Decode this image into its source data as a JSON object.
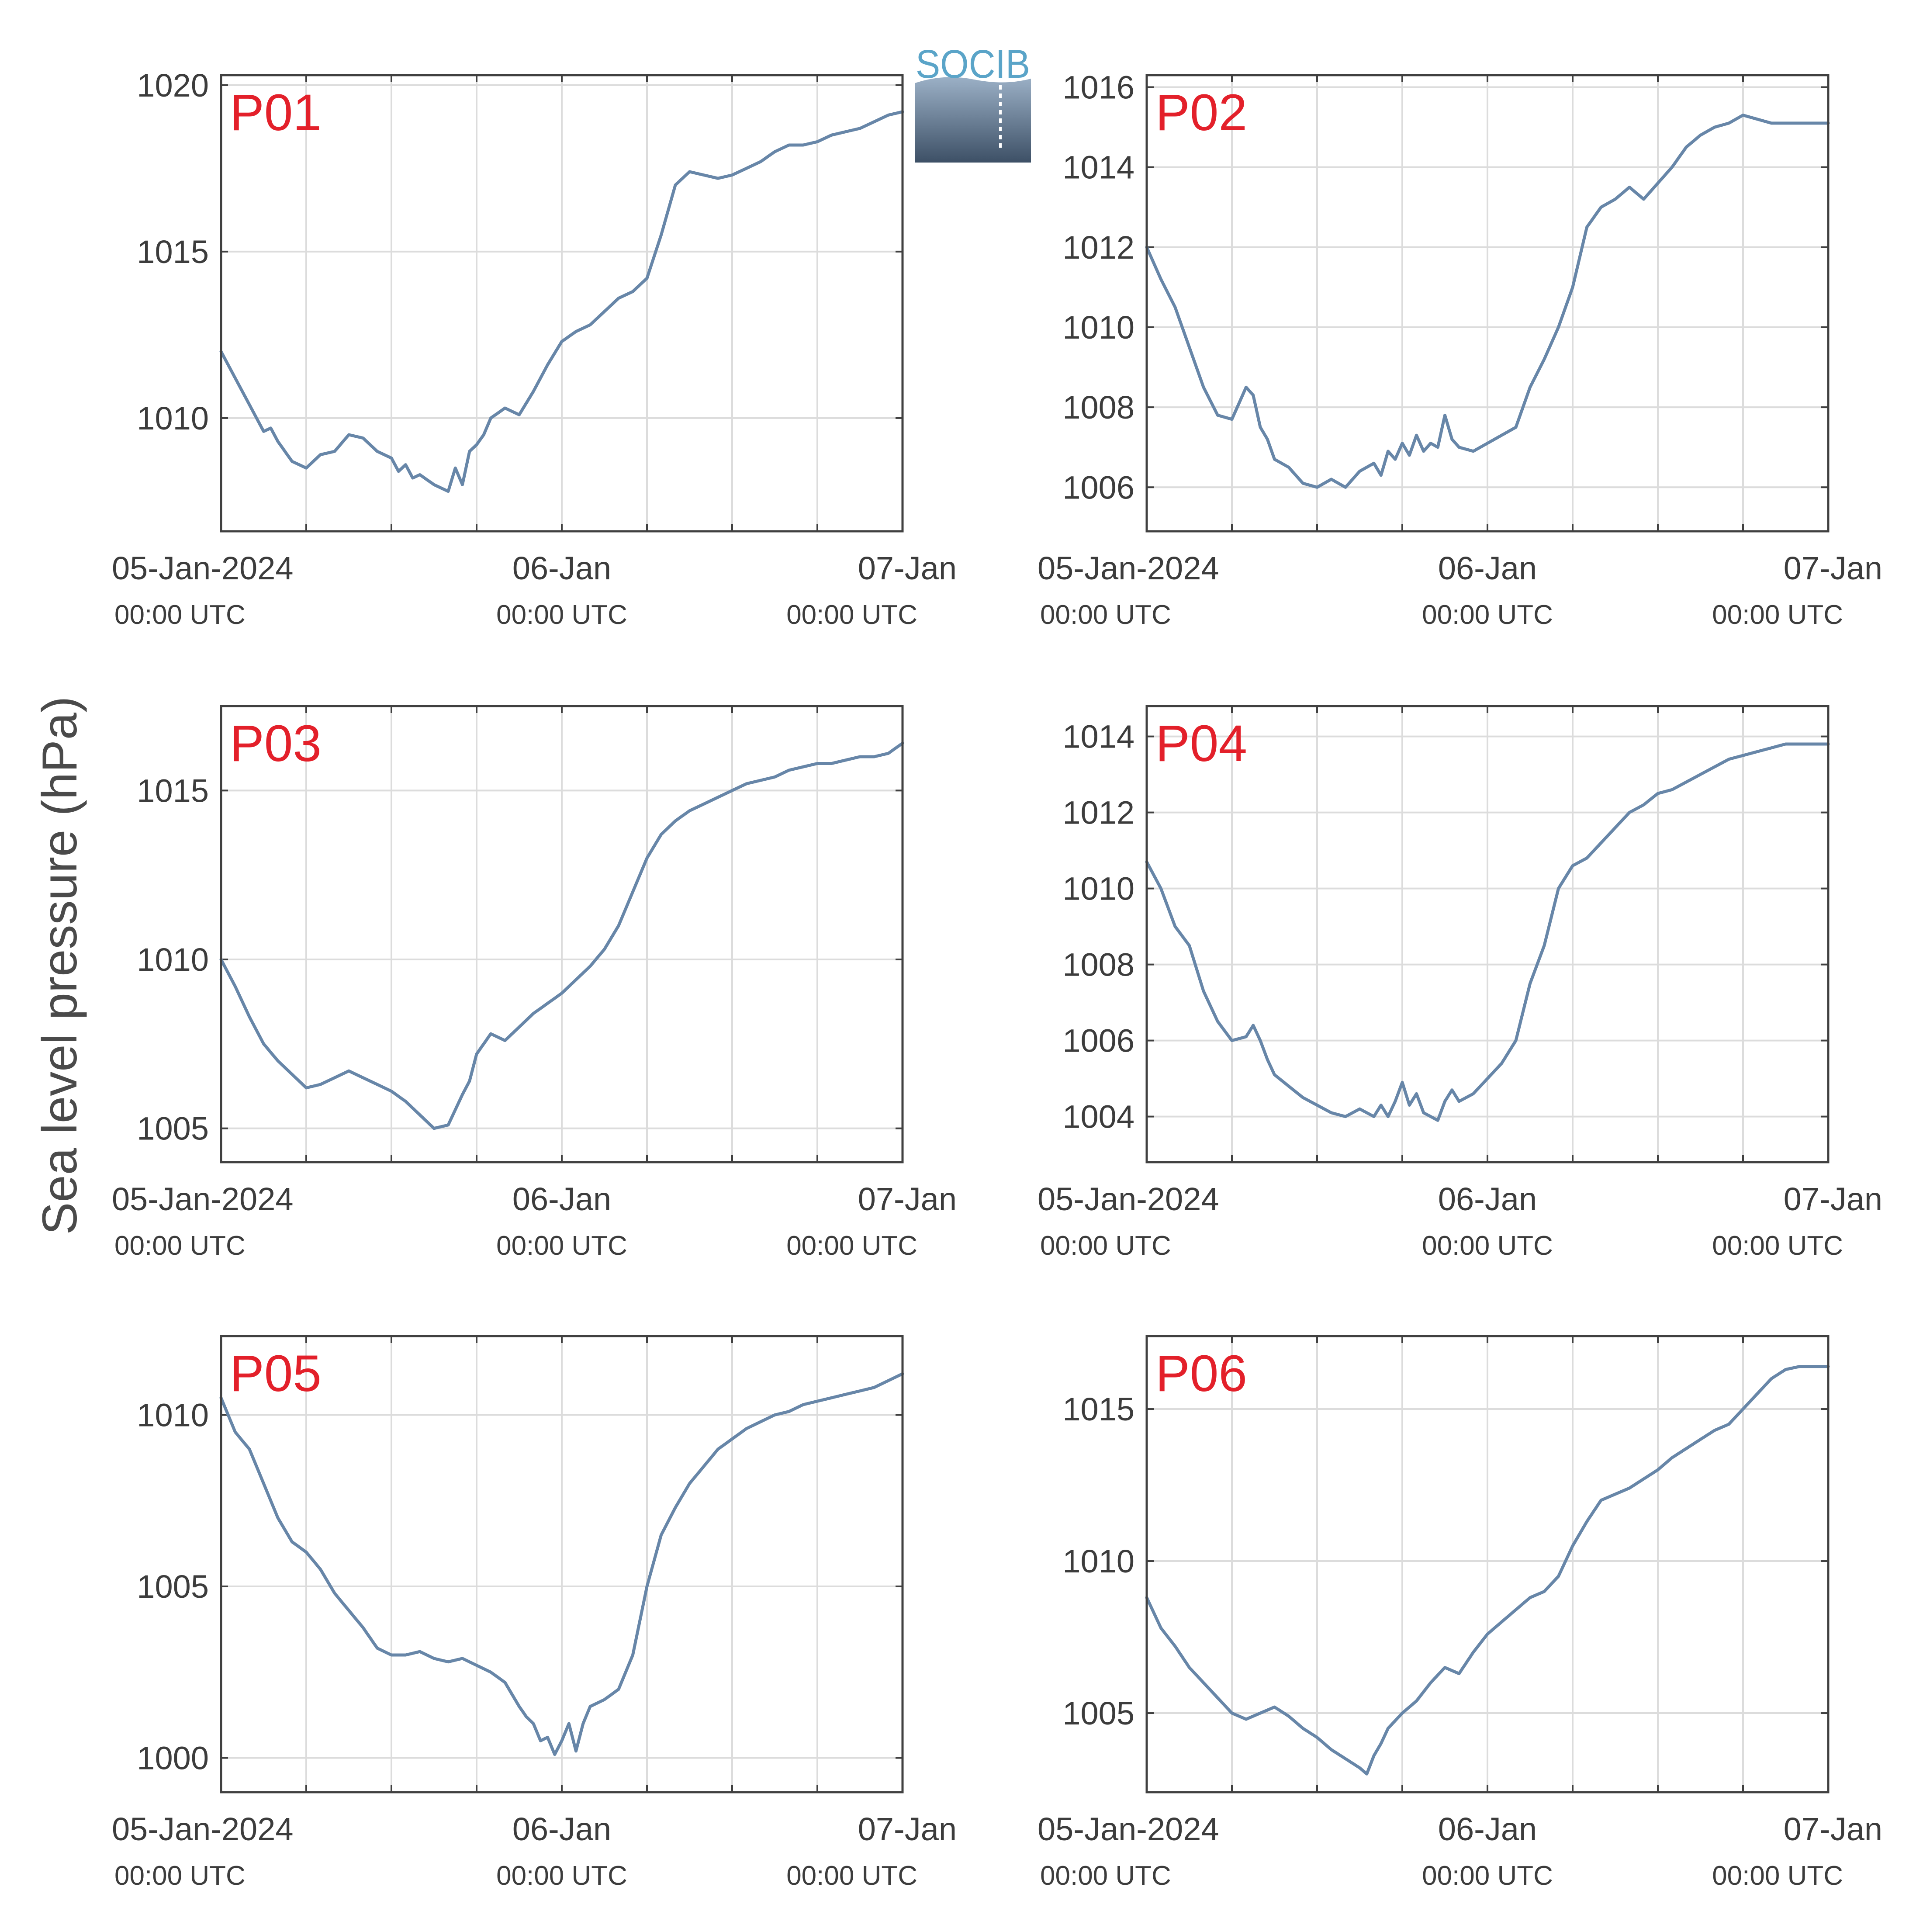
{
  "figure": {
    "ylabel": "Sea level pressure (hPa)",
    "logo_text": "SOCIB",
    "colors": {
      "line": "#6786a8",
      "panel_label": "#e3202a",
      "axis": "#404040",
      "grid": "#dcdcdc",
      "tick_text": "#3c3c3c",
      "logo_text": "#5aa4c8",
      "logo_top": "#9bb0c6",
      "logo_bottom": "#3d5066"
    }
  },
  "x_axis": {
    "range_hours": [
      0,
      48
    ],
    "ticks": [
      {
        "hours": 0,
        "label": "05-Jan-2024",
        "sublabel": "00:00 UTC"
      },
      {
        "hours": 24,
        "label": "06-Jan",
        "sublabel": "00:00 UTC"
      },
      {
        "hours": 48,
        "label": "07-Jan",
        "sublabel": "00:00 UTC"
      }
    ],
    "minor_grid_hours": [
      6,
      12,
      18,
      30,
      36,
      42
    ]
  },
  "chart_data": [
    {
      "type": "line",
      "label": "P01",
      "ylim": [
        1006.6,
        1020.3
      ],
      "yticks": [
        1010,
        1015,
        1020
      ],
      "series": [
        {
          "x": [
            0,
            1,
            2,
            3,
            3.5,
            4,
            5,
            6,
            7,
            8,
            9,
            10,
            11,
            12,
            12.5,
            13,
            13.5,
            14,
            15,
            16,
            16.5,
            17,
            17.5,
            18,
            18.5,
            19,
            20,
            21,
            22,
            23,
            24,
            25,
            26,
            27,
            28,
            29,
            30,
            31,
            32,
            33,
            34,
            35,
            36,
            37,
            38,
            39,
            40,
            41,
            42,
            43,
            44,
            45,
            46,
            47,
            48
          ],
          "y": [
            1012,
            1011.2,
            1010.4,
            1009.6,
            1009.7,
            1009.3,
            1008.7,
            1008.5,
            1008.9,
            1009.0,
            1009.5,
            1009.4,
            1009.0,
            1008.8,
            1008.4,
            1008.6,
            1008.2,
            1008.3,
            1008.0,
            1007.8,
            1008.5,
            1008.0,
            1009.0,
            1009.2,
            1009.5,
            1010.0,
            1010.3,
            1010.1,
            1010.8,
            1011.6,
            1012.3,
            1012.6,
            1012.8,
            1013.2,
            1013.6,
            1013.8,
            1014.2,
            1015.5,
            1017.0,
            1017.4,
            1017.3,
            1017.2,
            1017.3,
            1017.5,
            1017.7,
            1018.0,
            1018.2,
            1018.2,
            1018.3,
            1018.5,
            1018.6,
            1018.7,
            1018.9,
            1019.1,
            1019.2
          ]
        }
      ]
    },
    {
      "type": "line",
      "label": "P02",
      "ylim": [
        1004.9,
        1016.3
      ],
      "yticks": [
        1006,
        1008,
        1010,
        1012,
        1014,
        1016
      ],
      "series": [
        {
          "x": [
            0,
            1,
            2,
            3,
            4,
            5,
            6,
            6.5,
            7,
            7.5,
            8,
            8.5,
            9,
            10,
            11,
            12,
            13,
            14,
            15,
            16,
            16.5,
            17,
            17.5,
            18,
            18.5,
            19,
            19.5,
            20,
            20.5,
            21,
            21.5,
            22,
            23,
            24,
            25,
            26,
            27,
            28,
            29,
            30,
            31,
            32,
            33,
            34,
            35,
            36,
            37,
            38,
            39,
            40,
            41,
            42,
            43,
            44,
            45,
            46,
            47,
            48
          ],
          "y": [
            1012,
            1011.2,
            1010.5,
            1009.5,
            1008.5,
            1007.8,
            1007.7,
            1008.1,
            1008.5,
            1008.3,
            1007.5,
            1007.2,
            1006.7,
            1006.5,
            1006.1,
            1006.0,
            1006.2,
            1006.0,
            1006.4,
            1006.6,
            1006.3,
            1006.9,
            1006.7,
            1007.1,
            1006.8,
            1007.3,
            1006.9,
            1007.1,
            1007.0,
            1007.8,
            1007.2,
            1007.0,
            1006.9,
            1007.1,
            1007.3,
            1007.5,
            1008.5,
            1009.2,
            1010.0,
            1011.0,
            1012.5,
            1013.0,
            1013.2,
            1013.5,
            1013.2,
            1013.6,
            1014.0,
            1014.5,
            1014.8,
            1015.0,
            1015.1,
            1015.3,
            1015.2,
            1015.1,
            1015.1,
            1015.1,
            1015.1,
            1015.1
          ]
        }
      ]
    },
    {
      "type": "line",
      "label": "P03",
      "ylim": [
        1004.0,
        1017.5
      ],
      "yticks": [
        1005,
        1010,
        1015
      ],
      "series": [
        {
          "x": [
            0,
            1,
            2,
            3,
            4,
            5,
            6,
            7,
            8,
            9,
            10,
            11,
            12,
            13,
            14,
            15,
            16,
            17,
            17.5,
            18,
            19,
            20,
            21,
            22,
            23,
            24,
            25,
            26,
            27,
            28,
            29,
            30,
            31,
            32,
            33,
            34,
            35,
            36,
            37,
            38,
            39,
            40,
            41,
            42,
            43,
            44,
            45,
            46,
            47,
            48
          ],
          "y": [
            1010,
            1009.2,
            1008.3,
            1007.5,
            1007.0,
            1006.6,
            1006.2,
            1006.3,
            1006.5,
            1006.7,
            1006.5,
            1006.3,
            1006.1,
            1005.8,
            1005.4,
            1005.0,
            1005.1,
            1006.0,
            1006.4,
            1007.2,
            1007.8,
            1007.6,
            1008.0,
            1008.4,
            1008.7,
            1009.0,
            1009.4,
            1009.8,
            1010.3,
            1011.0,
            1012.0,
            1013.0,
            1013.7,
            1014.1,
            1014.4,
            1014.6,
            1014.8,
            1015.0,
            1015.2,
            1015.3,
            1015.4,
            1015.6,
            1015.7,
            1015.8,
            1015.8,
            1015.9,
            1016.0,
            1016.0,
            1016.1,
            1016.4
          ]
        }
      ]
    },
    {
      "type": "line",
      "label": "P04",
      "ylim": [
        1002.8,
        1014.8
      ],
      "yticks": [
        1004,
        1006,
        1008,
        1010,
        1012,
        1014
      ],
      "series": [
        {
          "x": [
            0,
            1,
            2,
            3,
            4,
            5,
            6,
            7,
            7.5,
            8,
            8.5,
            9,
            10,
            11,
            12,
            13,
            14,
            15,
            16,
            16.5,
            17,
            17.5,
            18,
            18.5,
            19,
            19.5,
            20,
            20.5,
            21,
            21.5,
            22,
            23,
            24,
            25,
            26,
            27,
            28,
            29,
            30,
            31,
            32,
            33,
            34,
            35,
            36,
            37,
            38,
            39,
            40,
            41,
            42,
            43,
            44,
            45,
            46,
            47,
            48
          ],
          "y": [
            1010.7,
            1010.0,
            1009.0,
            1008.5,
            1007.3,
            1006.5,
            1006.0,
            1006.1,
            1006.4,
            1006.0,
            1005.5,
            1005.1,
            1004.8,
            1004.5,
            1004.3,
            1004.1,
            1004.0,
            1004.2,
            1004.0,
            1004.3,
            1004.0,
            1004.4,
            1004.9,
            1004.3,
            1004.6,
            1004.1,
            1004.0,
            1003.9,
            1004.4,
            1004.7,
            1004.4,
            1004.6,
            1005.0,
            1005.4,
            1006.0,
            1007.5,
            1008.5,
            1010.0,
            1010.6,
            1010.8,
            1011.2,
            1011.6,
            1012.0,
            1012.2,
            1012.5,
            1012.6,
            1012.8,
            1013.0,
            1013.2,
            1013.4,
            1013.5,
            1013.6,
            1013.7,
            1013.8,
            1013.8,
            1013.8,
            1013.8
          ]
        }
      ]
    },
    {
      "type": "line",
      "label": "P05",
      "ylim": [
        999.0,
        1012.3
      ],
      "yticks": [
        1000,
        1005,
        1010
      ],
      "series": [
        {
          "x": [
            0,
            1,
            2,
            3,
            4,
            5,
            6,
            7,
            8,
            9,
            10,
            11,
            12,
            13,
            14,
            15,
            16,
            17,
            18,
            19,
            20,
            21,
            21.5,
            22,
            22.5,
            23,
            23.5,
            24,
            24.5,
            25,
            25.5,
            26,
            27,
            28,
            29,
            30,
            31,
            32,
            33,
            34,
            35,
            36,
            37,
            38,
            39,
            40,
            41,
            42,
            43,
            44,
            45,
            46,
            47,
            48
          ],
          "y": [
            1010.5,
            1009.5,
            1009.0,
            1008.0,
            1007.0,
            1006.3,
            1006.0,
            1005.5,
            1004.8,
            1004.3,
            1003.8,
            1003.2,
            1003.0,
            1003.0,
            1003.1,
            1002.9,
            1002.8,
            1002.9,
            1002.7,
            1002.5,
            1002.2,
            1001.5,
            1001.2,
            1001.0,
            1000.5,
            1000.6,
            1000.1,
            1000.5,
            1001.0,
            1000.2,
            1001.0,
            1001.5,
            1001.7,
            1002.0,
            1003.0,
            1005.0,
            1006.5,
            1007.3,
            1008.0,
            1008.5,
            1009.0,
            1009.3,
            1009.6,
            1009.8,
            1010.0,
            1010.1,
            1010.3,
            1010.4,
            1010.5,
            1010.6,
            1010.7,
            1010.8,
            1011.0,
            1011.2
          ]
        }
      ]
    },
    {
      "type": "line",
      "label": "P06",
      "ylim": [
        1002.4,
        1017.4
      ],
      "yticks": [
        1005,
        1010,
        1015
      ],
      "series": [
        {
          "x": [
            0,
            1,
            2,
            3,
            4,
            5,
            6,
            7,
            8,
            9,
            10,
            11,
            12,
            13,
            14,
            15,
            15.5,
            16,
            16.5,
            17,
            18,
            19,
            20,
            21,
            22,
            23,
            24,
            25,
            26,
            27,
            28,
            29,
            30,
            31,
            32,
            33,
            34,
            35,
            36,
            37,
            38,
            39,
            40,
            41,
            42,
            43,
            44,
            45,
            46,
            47,
            48
          ],
          "y": [
            1008.8,
            1007.8,
            1007.2,
            1006.5,
            1006.0,
            1005.5,
            1005.0,
            1004.8,
            1005.0,
            1005.2,
            1004.9,
            1004.5,
            1004.2,
            1003.8,
            1003.5,
            1003.2,
            1003.0,
            1003.6,
            1004.0,
            1004.5,
            1005.0,
            1005.4,
            1006.0,
            1006.5,
            1006.3,
            1007.0,
            1007.6,
            1008.0,
            1008.4,
            1008.8,
            1009.0,
            1009.5,
            1010.5,
            1011.3,
            1012.0,
            1012.2,
            1012.4,
            1012.7,
            1013.0,
            1013.4,
            1013.7,
            1014.0,
            1014.3,
            1014.5,
            1015.0,
            1015.5,
            1016.0,
            1016.3,
            1016.4,
            1016.4,
            1016.4
          ]
        }
      ]
    }
  ]
}
